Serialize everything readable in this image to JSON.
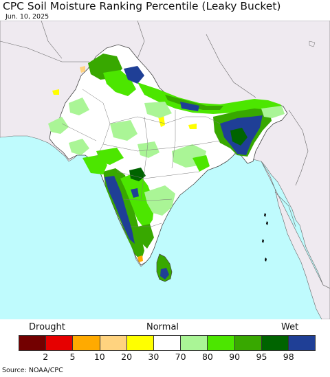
{
  "title": "CPC Soil Moisture Ranking Percentile (Leaky Bucket)",
  "date": "Jun. 10, 2025",
  "legend": {
    "left_label": "Drought",
    "center_label": "Normal",
    "right_label": "Wet",
    "colors": [
      "#730000",
      "#e60000",
      "#ffaa00",
      "#ffd37f",
      "#ffff00",
      "#ffffff",
      "#aaf596",
      "#4ce600",
      "#38a800",
      "#006400",
      "#1f3f96"
    ],
    "ticks": [
      "2",
      "5",
      "10",
      "20",
      "30",
      "70",
      "80",
      "90",
      "95",
      "98"
    ]
  },
  "source": "Source: NOAA/CPC",
  "colors": {
    "ocean": "#bffbfd",
    "outside_land": "#efeaf0",
    "border": "#555555"
  }
}
